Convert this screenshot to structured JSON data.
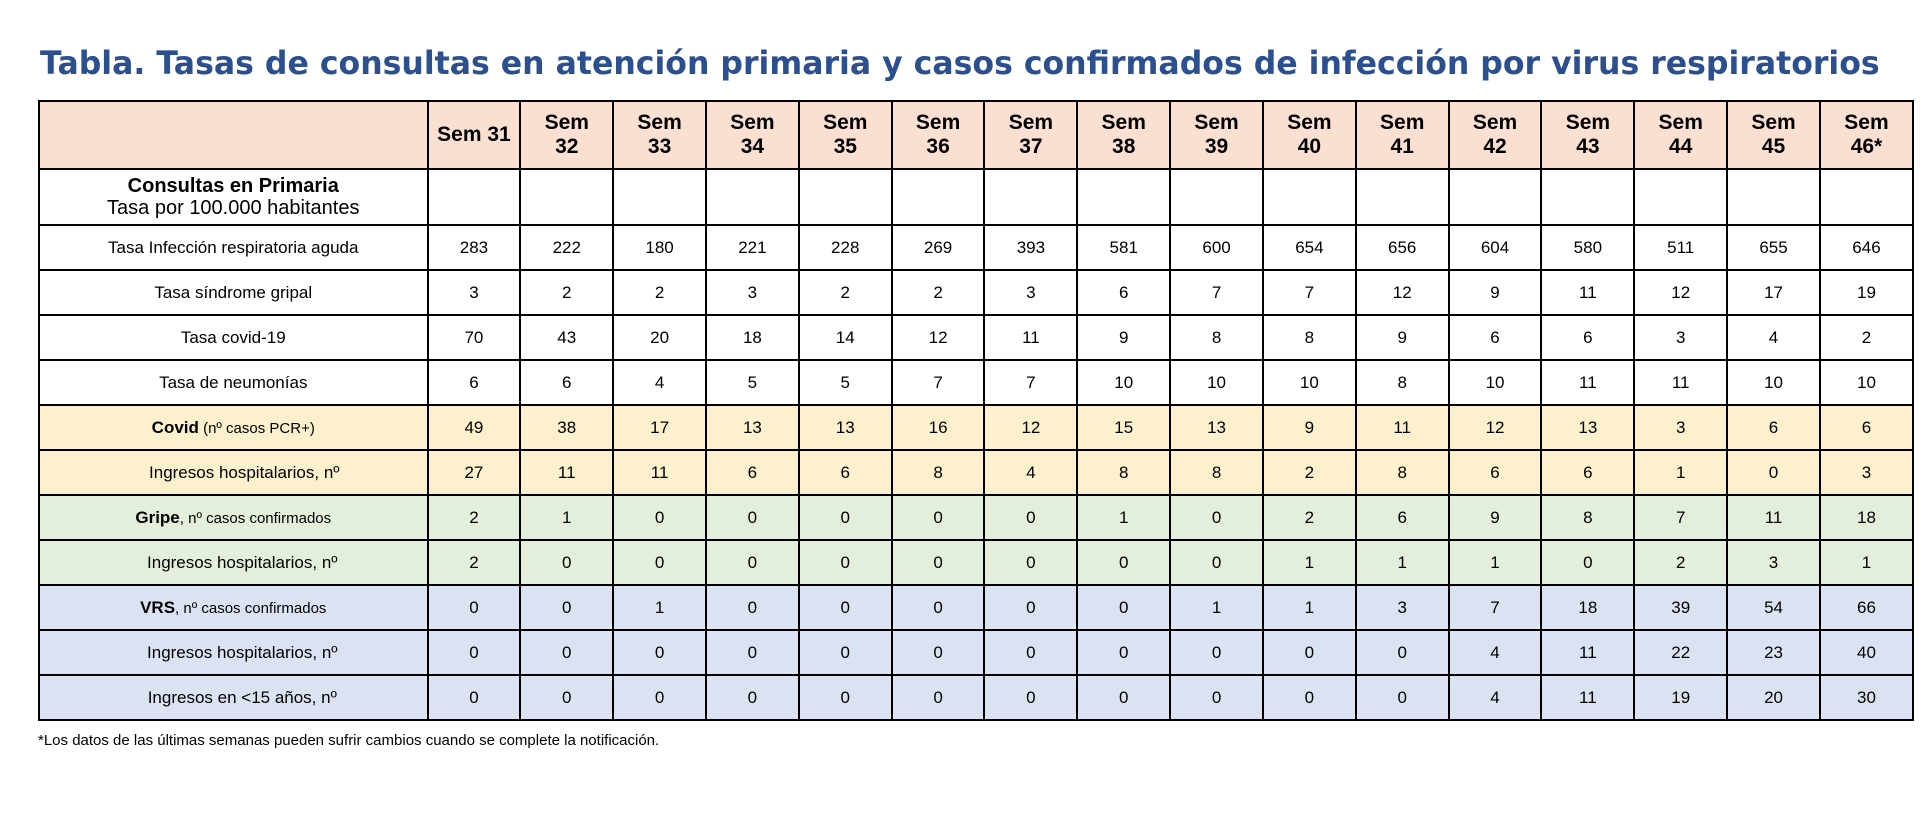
{
  "title": "Tabla. Tasas de consultas en atención primaria y casos confirmados de infección por virus respiratorios",
  "table": {
    "header": {
      "corner": "",
      "columns": [
        [
          "Sem 31"
        ],
        [
          "Sem",
          "32"
        ],
        [
          "Sem",
          "33"
        ],
        [
          "Sem",
          "34"
        ],
        [
          "Sem",
          "35"
        ],
        [
          "Sem",
          "36"
        ],
        [
          "Sem",
          "37"
        ],
        [
          "Sem",
          "38"
        ],
        [
          "Sem",
          "39"
        ],
        [
          "Sem",
          "40"
        ],
        [
          "Sem",
          "41"
        ],
        [
          "Sem",
          "42"
        ],
        [
          "Sem",
          "43"
        ],
        [
          "Sem",
          "44"
        ],
        [
          "Sem",
          "45"
        ],
        [
          "Sem",
          "46*"
        ]
      ]
    },
    "section_primaria": {
      "title": "Consultas en Primaria",
      "subtitle": "Tasa por 100.000 habitantes"
    },
    "rows": [
      {
        "section": "plain",
        "label_bold": "",
        "label": "Tasa Infección respiratoria aguda",
        "label_small": "",
        "indent": "",
        "values": [
          "283",
          "222",
          "180",
          "221",
          "228",
          "269",
          "393",
          "581",
          "600",
          "654",
          "656",
          "604",
          "580",
          "511",
          "655",
          "646"
        ]
      },
      {
        "section": "plain",
        "label_bold": "",
        "label": "Tasa síndrome gripal",
        "label_small": "",
        "indent": "",
        "values": [
          "3",
          "2",
          "2",
          "3",
          "2",
          "2",
          "3",
          "6",
          "7",
          "7",
          "12",
          "9",
          "11",
          "12",
          "17",
          "19"
        ]
      },
      {
        "section": "plain",
        "label_bold": "",
        "label": "Tasa covid-19",
        "label_small": "",
        "indent": "",
        "values": [
          "70",
          "43",
          "20",
          "18",
          "14",
          "12",
          "11",
          "9",
          "8",
          "8",
          "9",
          "6",
          "6",
          "3",
          "4",
          "2"
        ]
      },
      {
        "section": "plain",
        "label_bold": "",
        "label": "Tasa de neumonías",
        "label_small": "",
        "indent": "",
        "values": [
          "6",
          "6",
          "4",
          "5",
          "5",
          "7",
          "7",
          "10",
          "10",
          "10",
          "8",
          "10",
          "11",
          "11",
          "10",
          "10"
        ]
      },
      {
        "section": "covid",
        "label_bold": "Covid",
        "label": "",
        "label_small": " (nº casos PCR+)",
        "indent": "",
        "values": [
          "49",
          "38",
          "17",
          "13",
          "13",
          "16",
          "12",
          "15",
          "13",
          "9",
          "11",
          "12",
          "13",
          "3",
          "6",
          "6"
        ]
      },
      {
        "section": "covid",
        "label_bold": "",
        "label": "Ingresos hospitalarios, nº",
        "label_small": "",
        "indent": "indent",
        "values": [
          "27",
          "11",
          "11",
          "6",
          "6",
          "8",
          "4",
          "8",
          "8",
          "2",
          "8",
          "6",
          "6",
          "1",
          "0",
          "3"
        ]
      },
      {
        "section": "gripe",
        "label_bold": "Gripe",
        "label": "",
        "label_small": ", nº casos confirmados",
        "indent": "",
        "values": [
          "2",
          "1",
          "0",
          "0",
          "0",
          "0",
          "0",
          "1",
          "0",
          "2",
          "6",
          "9",
          "8",
          "7",
          "11",
          "18"
        ]
      },
      {
        "section": "gripe",
        "label_bold": "",
        "label": "Ingresos hospitalarios, nº",
        "label_small": "",
        "indent": "indent2",
        "values": [
          "2",
          "0",
          "0",
          "0",
          "0",
          "0",
          "0",
          "0",
          "0",
          "1",
          "1",
          "1",
          "0",
          "2",
          "3",
          "1"
        ]
      },
      {
        "section": "vrs",
        "label_bold": "VRS",
        "label": "",
        "label_small": ", nº casos confirmados",
        "indent": "",
        "values": [
          "0",
          "0",
          "1",
          "0",
          "0",
          "0",
          "0",
          "0",
          "1",
          "1",
          "3",
          "7",
          "18",
          "39",
          "54",
          "66"
        ]
      },
      {
        "section": "vrs",
        "label_bold": "",
        "label": "Ingresos hospitalarios, nº",
        "label_small": "",
        "indent": "indent2",
        "values": [
          "0",
          "0",
          "0",
          "0",
          "0",
          "0",
          "0",
          "0",
          "0",
          "0",
          "0",
          "4",
          "11",
          "22",
          "23",
          "40"
        ]
      },
      {
        "section": "vrs",
        "label_bold": "",
        "label": "Ingresos en <15 años, nº",
        "label_small": "",
        "indent": "indent2",
        "values": [
          "0",
          "0",
          "0",
          "0",
          "0",
          "0",
          "0",
          "0",
          "0",
          "0",
          "0",
          "4",
          "11",
          "19",
          "20",
          "30"
        ]
      }
    ]
  },
  "footnote": "*Los datos de las últimas semanas pueden sufrir cambios cuando se complete la notificación."
}
